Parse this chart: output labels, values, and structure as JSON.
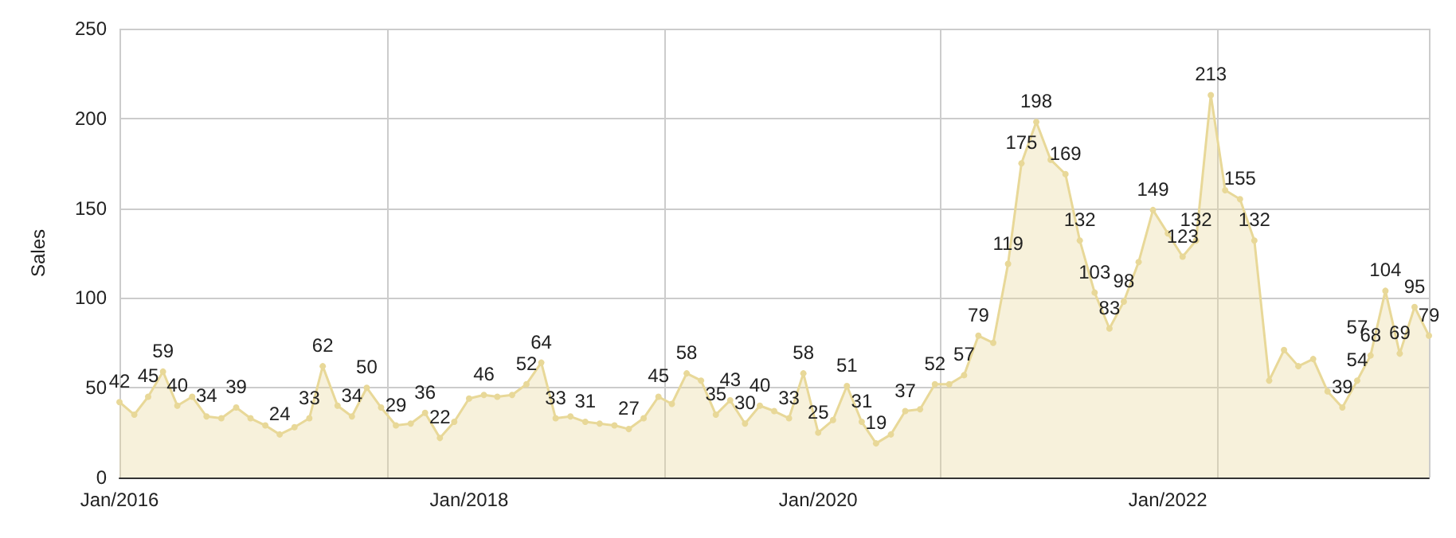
{
  "chart_data": {
    "type": "area",
    "ylabel": "Sales",
    "x": [
      "2016-01",
      "2016-02",
      "2016-03",
      "2016-04",
      "2016-05",
      "2016-06",
      "2016-07",
      "2016-08",
      "2016-09",
      "2016-10",
      "2016-11",
      "2016-12",
      "2017-01",
      "2017-02",
      "2017-03",
      "2017-04",
      "2017-05",
      "2017-06",
      "2017-07",
      "2017-08",
      "2017-09",
      "2017-10",
      "2017-11",
      "2017-12",
      "2018-01",
      "2018-02",
      "2018-03",
      "2018-04",
      "2018-05",
      "2018-06",
      "2018-07",
      "2018-08",
      "2018-09",
      "2018-10",
      "2018-11",
      "2018-12",
      "2019-01",
      "2019-02",
      "2019-03",
      "2019-04",
      "2019-05",
      "2019-06",
      "2019-07",
      "2019-08",
      "2019-09",
      "2019-10",
      "2019-11",
      "2019-12",
      "2020-01",
      "2020-02",
      "2020-03",
      "2020-04",
      "2020-05",
      "2020-06",
      "2020-07",
      "2020-08",
      "2020-09",
      "2020-10",
      "2020-11",
      "2020-12",
      "2021-01",
      "2021-02",
      "2021-03",
      "2021-04",
      "2021-05",
      "2021-06",
      "2021-07",
      "2021-08",
      "2021-09",
      "2021-10",
      "2021-11",
      "2021-12",
      "2022-01",
      "2022-02",
      "2022-03",
      "2022-04",
      "2022-05",
      "2022-06",
      "2022-07",
      "2022-08",
      "2022-09",
      "2022-10",
      "2022-11",
      "2022-12",
      "2023-01",
      "2023-02",
      "2023-03",
      "2023-04",
      "2023-05",
      "2023-06",
      "2023-07"
    ],
    "series": [
      {
        "color": "#e8d898",
        "values": [
          42,
          35,
          45,
          59,
          40,
          45,
          34,
          33,
          39,
          33,
          29,
          24,
          28,
          33,
          62,
          40,
          34,
          50,
          39,
          29,
          30,
          36,
          22,
          31,
          44,
          46,
          45,
          46,
          52,
          64,
          33,
          34,
          31,
          30,
          29,
          27,
          33,
          45,
          41,
          58,
          54,
          35,
          43,
          30,
          40,
          37,
          33,
          58,
          25,
          32,
          51,
          31,
          19,
          24,
          37,
          38,
          52,
          52,
          57,
          79,
          75,
          119,
          175,
          198,
          177,
          169,
          132,
          103,
          83,
          98,
          120,
          149,
          136,
          123,
          132,
          213,
          160,
          155,
          132,
          54,
          71,
          62,
          66,
          48,
          39,
          54,
          68,
          104,
          69,
          95,
          79
        ],
        "value_labels": [
          "42",
          null,
          "45",
          "59",
          "40",
          null,
          "34",
          null,
          "39",
          null,
          null,
          "24",
          null,
          "33",
          "62",
          null,
          "34",
          "50",
          null,
          "29",
          null,
          "36",
          "22",
          null,
          null,
          "46",
          null,
          null,
          "52",
          "64",
          "33",
          null,
          "31",
          null,
          null,
          "27",
          null,
          "45",
          null,
          "58",
          null,
          "35",
          "43",
          "30",
          "40",
          null,
          "33",
          "58",
          "25",
          null,
          "51",
          "31",
          "19",
          null,
          "37",
          null,
          "52",
          null,
          "57",
          "79",
          null,
          "119",
          "175",
          "198",
          null,
          "169",
          "132",
          "103",
          "83",
          "98",
          null,
          "149",
          null,
          "123",
          "132",
          "213",
          null,
          "155",
          "132",
          null,
          null,
          null,
          null,
          null,
          "39",
          "54",
          "68",
          "104",
          "69",
          "95",
          "79"
        ]
      }
    ],
    "annotations": [
      {
        "text": "57",
        "x": "2023-02",
        "y": 57
      }
    ],
    "xlim": [
      "2016-01",
      "2023-07"
    ],
    "xticks": [
      {
        "value": "2016-01",
        "label": "Jan/2016"
      },
      {
        "value": "2018-01",
        "label": "Jan/2018"
      },
      {
        "value": "2020-01",
        "label": "Jan/2020"
      },
      {
        "value": "2022-01",
        "label": "Jan/2022"
      }
    ],
    "ylim": [
      0,
      250
    ],
    "yticks": [
      0,
      50,
      100,
      150,
      200,
      250
    ],
    "grid": true,
    "marker": "circle"
  }
}
